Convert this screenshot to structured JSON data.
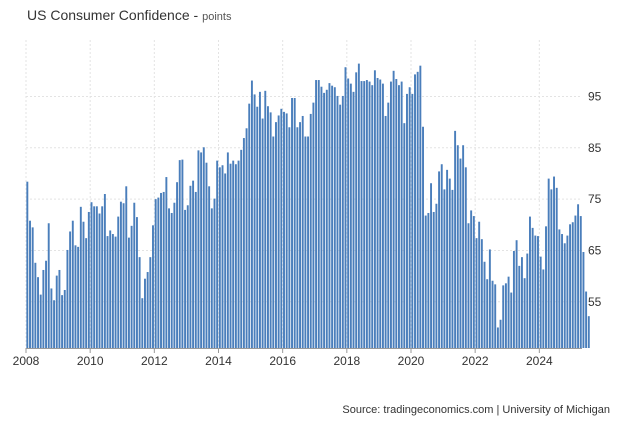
{
  "chart_data": {
    "type": "bar",
    "title": "US Consumer Confidence",
    "subtitle": "points",
    "source": "Source: tradingeconomics.com | University of Michigan",
    "xlim": [
      2008.0,
      2025.33
    ],
    "ylim": [
      46,
      106
    ],
    "x_ticks": [
      "2008",
      "2010",
      "2012",
      "2014",
      "2016",
      "2018",
      "2020",
      "2022",
      "2024"
    ],
    "y_ticks": [
      95,
      85,
      75,
      65,
      55
    ],
    "bar_color": "#4a7ebb",
    "grid": true,
    "series": [
      {
        "start": "2008-01",
        "frequency": "monthly",
        "values": [
          78.4,
          70.8,
          69.5,
          62.6,
          59.8,
          56.4,
          61.2,
          63.0,
          70.3,
          57.6,
          55.3,
          60.1,
          61.2,
          56.3,
          57.3,
          65.1,
          68.7,
          70.8,
          66.0,
          65.7,
          73.5,
          70.6,
          67.4,
          72.5,
          74.4,
          73.6,
          73.6,
          72.2,
          73.6,
          76.0,
          67.8,
          68.9,
          68.2,
          67.7,
          71.6,
          74.5,
          74.2,
          77.5,
          67.5,
          69.8,
          74.3,
          71.5,
          63.7,
          55.7,
          59.5,
          60.8,
          63.7,
          69.9,
          75.0,
          75.3,
          76.2,
          76.4,
          79.3,
          73.2,
          72.3,
          74.3,
          78.3,
          82.6,
          82.7,
          72.9,
          73.8,
          77.6,
          78.6,
          76.4,
          84.5,
          84.1,
          85.1,
          82.1,
          77.5,
          73.2,
          75.1,
          82.5,
          81.2,
          81.6,
          80.0,
          84.1,
          81.9,
          82.5,
          81.8,
          82.5,
          84.6,
          86.9,
          88.8,
          93.6,
          98.1,
          95.4,
          93.0,
          95.9,
          90.7,
          96.1,
          93.1,
          91.9,
          87.2,
          90.0,
          91.3,
          92.6,
          92.0,
          91.7,
          89.0,
          94.7,
          94.7,
          89.0,
          90.0,
          91.2,
          87.2,
          87.2,
          91.6,
          93.8,
          98.2,
          98.2,
          96.9,
          95.7,
          96.3,
          97.6,
          97.1,
          96.8,
          95.1,
          93.4,
          95.1,
          100.7,
          98.5,
          97.5,
          95.9,
          99.7,
          101.4,
          98.0,
          98.0,
          98.2,
          97.9,
          97.2,
          100.1,
          98.6,
          98.3,
          97.5,
          91.2,
          93.8,
          97.9,
          100.0,
          98.4,
          97.2,
          97.9,
          89.8,
          95.5,
          96.8,
          95.5,
          99.3,
          99.8,
          101.0,
          89.1,
          71.8,
          72.3,
          78.1,
          72.5,
          74.1,
          80.4,
          81.8,
          76.9,
          80.7,
          79.0,
          76.8,
          88.3,
          85.5,
          82.9,
          85.5,
          81.2,
          70.3,
          72.8,
          71.7,
          67.4,
          70.6,
          67.2,
          62.8,
          59.4,
          65.2,
          59.1,
          58.4,
          50.0,
          51.5,
          58.2,
          58.6,
          59.9,
          56.8,
          64.9,
          67.0,
          62.0,
          63.7,
          59.6,
          64.4,
          71.6,
          69.4,
          67.9,
          67.8,
          63.8,
          61.3,
          69.7,
          79.0,
          76.9,
          79.4,
          77.2,
          69.1,
          68.2,
          66.4,
          67.9,
          70.1,
          70.5,
          71.8,
          74.0,
          71.7,
          64.7,
          57.0,
          52.2
        ]
      }
    ]
  }
}
